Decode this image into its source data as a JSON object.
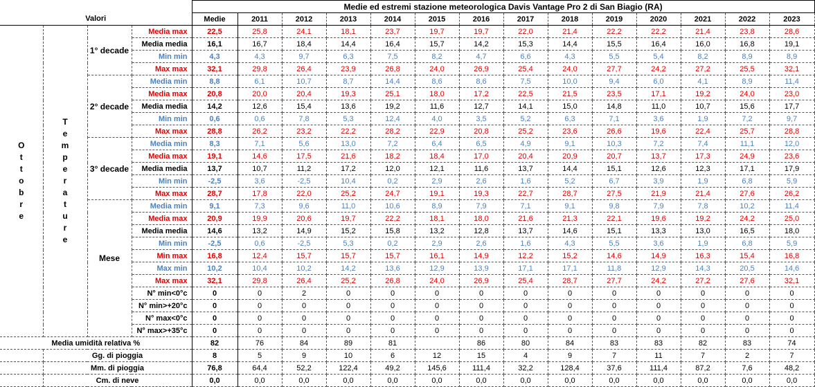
{
  "title": "Medie ed estremi stazione meteorologica Davis Vantage Pro 2 di San Biagio (RA)",
  "valori_label": "Valori",
  "medie_label": "Medie",
  "years": [
    "2011",
    "2012",
    "2013",
    "2014",
    "2015",
    "2016",
    "2017",
    "2018",
    "2019",
    "2020",
    "2021",
    "2022",
    "2023"
  ],
  "month_label": "Ottobre",
  "group_label": "Temperature",
  "sections": [
    {
      "label": "1° decade",
      "rows": [
        {
          "label": "Media max",
          "color": "red",
          "avg": "22,5",
          "vals": [
            "25,8",
            "24,1",
            "18,1",
            "23,7",
            "19,7",
            "19,7",
            "22,0",
            "21,4",
            "22,2",
            "22,2",
            "21,4",
            "23,8",
            "28,6"
          ]
        },
        {
          "label": "Media media",
          "color": "blk",
          "avg": "16,1",
          "vals": [
            "16,7",
            "18,4",
            "14,4",
            "16,4",
            "15,7",
            "14,2",
            "15,3",
            "14,4",
            "15,5",
            "16,4",
            "16,0",
            "16,8",
            "19,1"
          ]
        },
        {
          "label": "Min min",
          "color": "blue",
          "avg": "4,3",
          "vals": [
            "4,3",
            "9,7",
            "6,3",
            "7,5",
            "8,2",
            "4,7",
            "6,6",
            "4,3",
            "5,5",
            "5,4",
            "8,2",
            "8,9",
            "8,9"
          ]
        },
        {
          "label": "Max max",
          "color": "red",
          "avg": "32,1",
          "vals": [
            "29,8",
            "26,4",
            "23,9",
            "26,8",
            "24,0",
            "26,9",
            "25,4",
            "24,0",
            "27,7",
            "24,2",
            "27,2",
            "25,5",
            "32,1"
          ]
        }
      ]
    },
    {
      "label": "2° decade",
      "rows": [
        {
          "label": "Media min",
          "color": "blue",
          "avg": "8,8",
          "vals": [
            "6,1",
            "10,7",
            "8,7",
            "14,4",
            "8,6",
            "8,6",
            "7,5",
            "10,0",
            "9,4",
            "6,0",
            "4,1",
            "8,9",
            "11,4"
          ]
        },
        {
          "label": "Media max",
          "color": "red",
          "avg": "20,8",
          "vals": [
            "20,0",
            "20,4",
            "19,3",
            "25,1",
            "18,0",
            "17,2",
            "22,5",
            "21,5",
            "23,5",
            "17,1",
            "19,2",
            "24,0",
            "23,0"
          ]
        },
        {
          "label": "Media media",
          "color": "blk",
          "avg": "14,2",
          "vals": [
            "12,6",
            "15,4",
            "13,6",
            "19,2",
            "11,6",
            "12,7",
            "14,1",
            "15,0",
            "14,8",
            "11,0",
            "10,7",
            "15,6",
            "17,7"
          ]
        },
        {
          "label": "Min min",
          "color": "blue",
          "avg": "0,6",
          "vals": [
            "0,6",
            "7,8",
            "5,3",
            "12,4",
            "4,0",
            "3,5",
            "5,2",
            "6,3",
            "7,1",
            "3,6",
            "1,9",
            "7,2",
            "9,7"
          ]
        },
        {
          "label": "Max max",
          "color": "red",
          "avg": "28,8",
          "vals": [
            "26,2",
            "23,2",
            "22,2",
            "28,2",
            "22,9",
            "20,8",
            "25,2",
            "23,6",
            "26,6",
            "19,6",
            "22,4",
            "25,7",
            "28,8"
          ]
        }
      ]
    },
    {
      "label": "3° decade",
      "rows": [
        {
          "label": "Media min",
          "color": "blue",
          "avg": "8,3",
          "vals": [
            "7,1",
            "5,6",
            "13,0",
            "7,2",
            "6,4",
            "6,5",
            "4,9",
            "9,1",
            "10,3",
            "7,2",
            "7,4",
            "11,1",
            "12,0"
          ]
        },
        {
          "label": "Media max",
          "color": "red",
          "avg": "19,1",
          "vals": [
            "14,6",
            "17,5",
            "21,6",
            "18,2",
            "18,4",
            "17,0",
            "20,4",
            "20,9",
            "20,7",
            "13,7",
            "17,3",
            "24,9",
            "23,6"
          ]
        },
        {
          "label": "Media media",
          "color": "blk",
          "avg": "13,7",
          "vals": [
            "10,7",
            "11,2",
            "17,2",
            "12,0",
            "12,1",
            "11,6",
            "13,7",
            "14,4",
            "15,1",
            "12,6",
            "12,3",
            "17,1",
            "17,9"
          ]
        },
        {
          "label": "Min min",
          "color": "blue",
          "avg": "-2,5",
          "vals": [
            "3,6",
            "-2,5",
            "10,4",
            "0,2",
            "2,9",
            "2,6",
            "1,6",
            "5,2",
            "6,7",
            "3,9",
            "1,9",
            "6,8",
            "5,9"
          ]
        },
        {
          "label": "Max max",
          "color": "red",
          "avg": "28,7",
          "vals": [
            "17,8",
            "22,0",
            "25,2",
            "24,7",
            "19,1",
            "19,3",
            "22,7",
            "28,7",
            "27,5",
            "21,9",
            "21,4",
            "27,6",
            "26,2"
          ]
        }
      ]
    },
    {
      "label": "Mese",
      "rows": [
        {
          "label": "Media min",
          "color": "blue",
          "avg": "9,1",
          "vals": [
            "7,3",
            "9,6",
            "11,0",
            "10,6",
            "8,9",
            "7,9",
            "7,1",
            "9,1",
            "9,8",
            "7,9",
            "7,8",
            "10,2",
            "11,4"
          ]
        },
        {
          "label": "Media max",
          "color": "red",
          "avg": "20,9",
          "vals": [
            "19,9",
            "20,6",
            "19,7",
            "22,2",
            "18,1",
            "18,0",
            "21,6",
            "21,3",
            "22,1",
            "19,6",
            "19,2",
            "24,2",
            "25,0"
          ]
        },
        {
          "label": "Media media",
          "color": "blk",
          "avg": "14,6",
          "vals": [
            "13,2",
            "14,9",
            "15,2",
            "15,8",
            "13,2",
            "12,8",
            "13,7",
            "14,6",
            "15,1",
            "13,3",
            "13,0",
            "16,5",
            "18,0"
          ]
        },
        {
          "label": "Min min",
          "color": "blue",
          "avg": "-2,5",
          "vals": [
            "0,6",
            "-2,5",
            "5,3",
            "0,2",
            "2,9",
            "2,6",
            "1,6",
            "4,3",
            "5,5",
            "3,6",
            "1,9",
            "6,8",
            "5,9"
          ]
        },
        {
          "label": "Min max",
          "color": "red",
          "avg": "16,8",
          "vals": [
            "12,4",
            "15,7",
            "15,7",
            "15,7",
            "16,1",
            "14,9",
            "12,2",
            "15,2",
            "14,6",
            "14,9",
            "16,3",
            "15,4",
            "16,8"
          ]
        },
        {
          "label": "Max min",
          "color": "blue",
          "avg": "10,2",
          "vals": [
            "10,4",
            "10,2",
            "14,2",
            "13,6",
            "12,9",
            "13,9",
            "17,1",
            "17,1",
            "11,8",
            "12,9",
            "14,3",
            "20,5",
            "14,6"
          ]
        },
        {
          "label": "Max max",
          "color": "red",
          "avg": "32,1",
          "vals": [
            "29,8",
            "26,4",
            "25,2",
            "26,8",
            "24,0",
            "26,9",
            "25,4",
            "28,7",
            "27,7",
            "24,2",
            "27,2",
            "27,6",
            "32,1"
          ]
        },
        {
          "label": "N° min<0°c",
          "color": "blk",
          "avg": "0",
          "vals": [
            "0",
            "2",
            "0",
            "0",
            "0",
            "0",
            "0",
            "0",
            "0",
            "0",
            "0",
            "0",
            "0"
          ]
        },
        {
          "label": "N° min>+20°c",
          "color": "blk",
          "avg": "0",
          "vals": [
            "0",
            "0",
            "0",
            "0",
            "0",
            "0",
            "0",
            "0",
            "0",
            "0",
            "0",
            "0",
            "0"
          ]
        },
        {
          "label": "N° max<0°c",
          "color": "blk",
          "avg": "0",
          "vals": [
            "0",
            "0",
            "0",
            "0",
            "0",
            "0",
            "0",
            "0",
            "0",
            "0",
            "0",
            "0",
            "0"
          ]
        },
        {
          "label": "N° max>+35°c",
          "color": "blk",
          "avg": "0",
          "vals": [
            "0",
            "0",
            "0",
            "0",
            "0",
            "0",
            "0",
            "0",
            "0",
            "0",
            "0",
            "0",
            "0"
          ]
        }
      ]
    }
  ],
  "bottom_rows": [
    {
      "label": "Media umidità relativa %",
      "avg": "82",
      "vals": [
        "76",
        "84",
        "89",
        "81",
        "",
        "86",
        "80",
        "84",
        "83",
        "83",
        "82",
        "83",
        "74"
      ]
    },
    {
      "label": "Gg. di pioggia",
      "avg": "8",
      "vals": [
        "5",
        "9",
        "10",
        "6",
        "12",
        "15",
        "4",
        "9",
        "7",
        "11",
        "7",
        "2",
        "7"
      ]
    },
    {
      "label": "Mm. di pioggia",
      "avg": "76,8",
      "vals": [
        "64,4",
        "52,2",
        "122,4",
        "49,2",
        "145,6",
        "111,4",
        "32,2",
        "128,4",
        "37,6",
        "111,4",
        "87,2",
        "7,6",
        "48,2"
      ]
    },
    {
      "label": "Cm. di neve",
      "avg": "0,0",
      "vals": [
        "0,0",
        "0,0",
        "0,0",
        "0,0",
        "0,0",
        "0,0",
        "0,0",
        "0,0",
        "0,0",
        "0,0",
        "0,0",
        "0,0",
        "0,0"
      ]
    }
  ]
}
